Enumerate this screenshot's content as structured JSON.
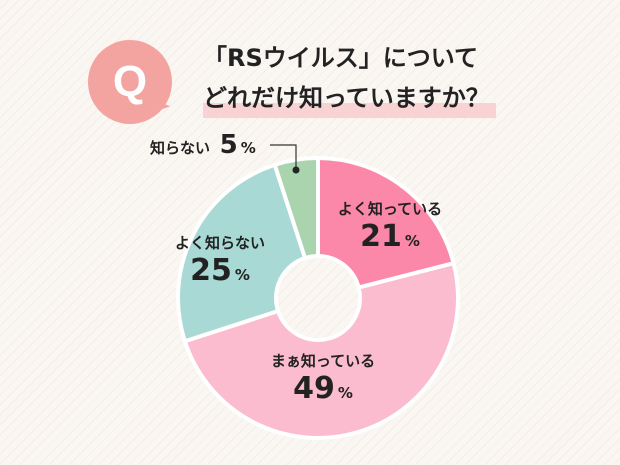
{
  "question": {
    "icon_letter": "Q",
    "line1": "「RSウイルス」について",
    "line2": "どれだけ知っていますか？"
  },
  "chart_data": {
    "type": "pie",
    "donut": true,
    "categories": [
      "よく知っている",
      "まぁ知っている",
      "よく知らない",
      "知らない"
    ],
    "values": [
      21,
      49,
      25,
      5
    ],
    "unit": "%",
    "colors": [
      "#fb87a9",
      "#fbbccf",
      "#a8d9d5",
      "#a9d4ad"
    ],
    "start": "top, clockwise"
  }
}
